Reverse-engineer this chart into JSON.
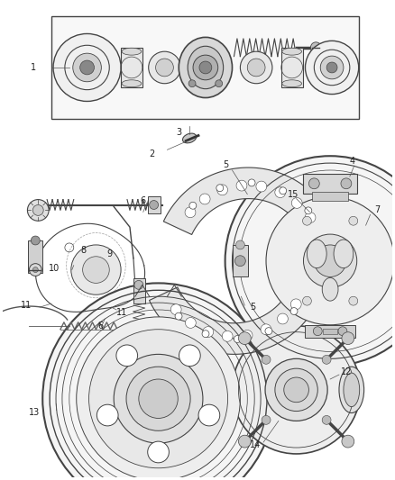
{
  "background_color": "#ffffff",
  "fig_width": 4.38,
  "fig_height": 5.33,
  "dpi": 100,
  "line_color": "#444444",
  "label_fontsize": 7.0,
  "label_color": "#222222"
}
